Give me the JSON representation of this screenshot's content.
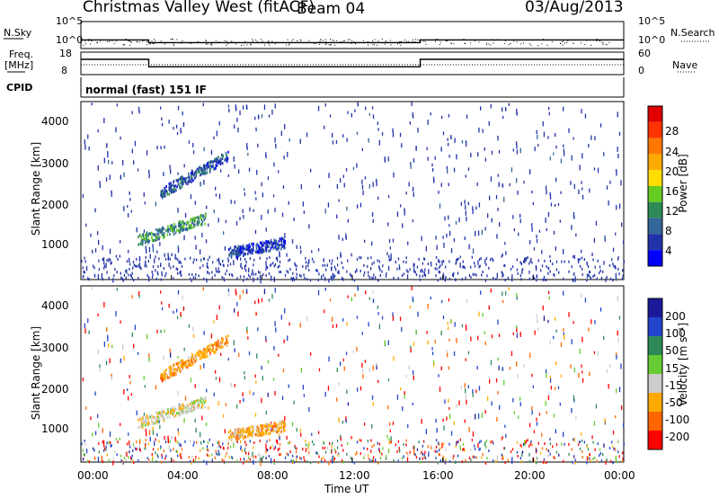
{
  "header": {
    "title": "Christmas Valley West (fitACF)",
    "beam": "Beam 04",
    "date": "03/Aug/2013"
  },
  "top_panels": {
    "nsky_label": "N.Sky",
    "nsky_ticks": [
      "10^5",
      "10^0"
    ],
    "nsearch_label": "N.Search",
    "nsearch_ticks": [
      "10^5",
      "10^0"
    ],
    "freq_label_1": "Freq.",
    "freq_label_2": "[MHz]",
    "freq_ticks": [
      "18",
      "8"
    ],
    "nave_label": "Nave",
    "nave_ticks": [
      "60",
      "0"
    ],
    "cpid_label": "CPID",
    "cpid_value": "normal (fast) 151 IF"
  },
  "power_panel": {
    "ylabel": "Slant Range [km]",
    "yticks": [
      "4000",
      "3000",
      "2000",
      "1000"
    ],
    "colorbar_label": "Power [dB]",
    "colorbar_ticks": [
      "28",
      "24",
      "20",
      "16",
      "12",
      "8",
      "4"
    ],
    "colorbar_colors": [
      "#e00000",
      "#ff3300",
      "#ff7700",
      "#ffaa00",
      "#ffdd00",
      "#66cc22",
      "#2e8b57",
      "#336699",
      "#2233aa",
      "#0000ff"
    ]
  },
  "velocity_panel": {
    "ylabel": "Slant Range [km]",
    "yticks": [
      "4000",
      "3000",
      "2000",
      "1000"
    ],
    "colorbar_label": "Velocity [m s⁻¹]",
    "colorbar_ticks": [
      "200",
      "100",
      "50",
      "15",
      "-15",
      "-50",
      "-100",
      "-200"
    ],
    "colorbar_colors": [
      "#1a1a99",
      "#2244cc",
      "#2e8b57",
      "#66cc33",
      "#cccccc",
      "#ffaa00",
      "#ff6600",
      "#ff0000"
    ]
  },
  "xaxis": {
    "label": "Time UT",
    "ticks": [
      "00:00",
      "04:00",
      "08:00",
      "12:00",
      "16:00",
      "20:00",
      "00:00"
    ]
  },
  "chart_data": [
    {
      "type": "line",
      "title": "N.Sky / N.Search",
      "x": [
        "00:00",
        "03:00",
        "03:00",
        "15:00",
        "15:00",
        "24:00"
      ],
      "series": [
        {
          "name": "N.Sky",
          "values": [
            1.6,
            1.6,
            1.1,
            1.1,
            1.6,
            1.6
          ]
        }
      ],
      "ylim": [
        0,
        5
      ]
    },
    {
      "type": "line",
      "title": "Freq. / Nave",
      "x": [
        "00:00",
        "03:00",
        "03:00",
        "15:00",
        "15:00",
        "24:00"
      ],
      "series": [
        {
          "name": "Freq.",
          "values": [
            14.8,
            14.8,
            11.5,
            11.5,
            14.8,
            14.8
          ]
        },
        {
          "name": "Nave",
          "values": [
            18,
            18,
            18,
            18,
            18,
            18
          ]
        }
      ],
      "ylim": [
        8,
        18
      ]
    },
    {
      "type": "heatmap",
      "title": "Power [dB]",
      "xlabel": "Time UT",
      "ylabel": "Slant Range [km]",
      "xlim": [
        0,
        24
      ],
      "ylim": [
        180,
        4500
      ],
      "clim": [
        0,
        30
      ],
      "features": [
        {
          "start_hour": 2.5,
          "end_hour": 5.5,
          "start_range_km": 1150,
          "end_range_km": 1700,
          "power_db": 10
        },
        {
          "start_hour": 3.5,
          "end_hour": 6.5,
          "start_range_km": 2300,
          "end_range_km": 3200,
          "power_db": 6
        },
        {
          "start_hour": 6.5,
          "end_hour": 9.0,
          "start_range_km": 850,
          "end_range_km": 1100,
          "power_db": 5
        }
      ]
    },
    {
      "type": "heatmap",
      "title": "Velocity [m s⁻¹]",
      "xlabel": "Time UT",
      "ylabel": "Slant Range [km]",
      "xlim": [
        0,
        24
      ],
      "ylim": [
        180,
        4500
      ],
      "clim": [
        -200,
        200
      ],
      "features": [
        {
          "start_hour": 2.5,
          "end_hour": 5.5,
          "start_range_km": 1150,
          "end_range_km": 1700,
          "velocity": 0
        },
        {
          "start_hour": 3.5,
          "end_hour": 6.5,
          "start_range_km": 2300,
          "end_range_km": 3200,
          "velocity": -40
        },
        {
          "start_hour": 6.5,
          "end_hour": 9.0,
          "start_range_km": 850,
          "end_range_km": 1100,
          "velocity": -30
        }
      ]
    }
  ]
}
